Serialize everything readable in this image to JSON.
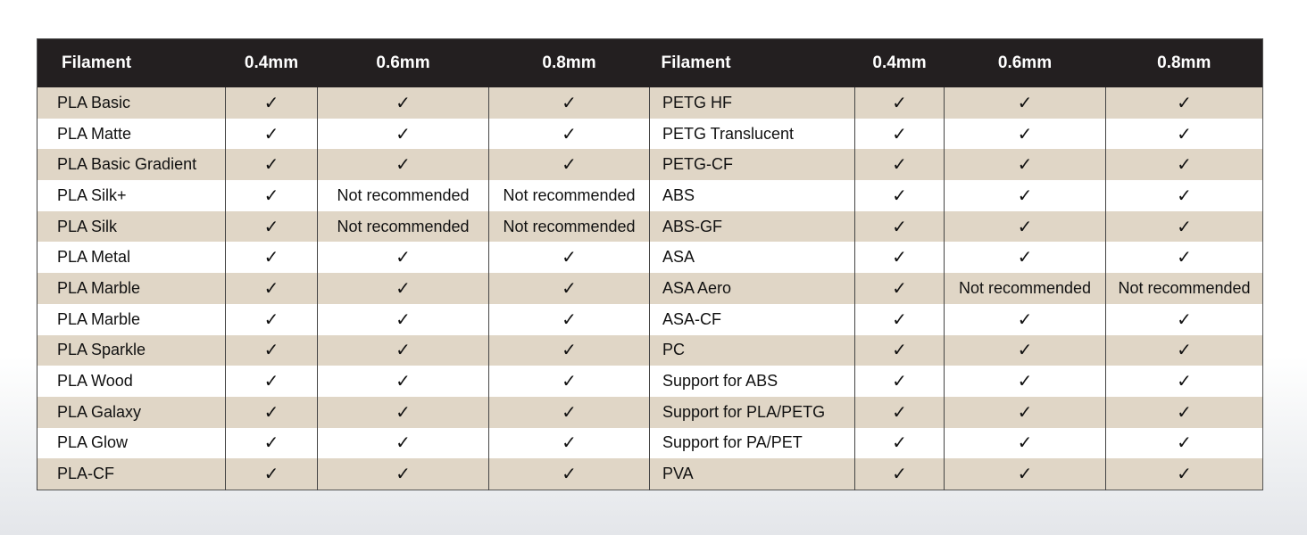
{
  "table": {
    "header": [
      "Filament",
      "0.4mm",
      "0.6mm",
      "0.8mm",
      "Filament",
      "0.4mm",
      "0.6mm",
      "0.8mm"
    ],
    "rows": [
      [
        "PLA Basic",
        "✓",
        "✓",
        "✓",
        "PETG HF",
        "✓",
        "✓",
        "✓"
      ],
      [
        "PLA Matte",
        "✓",
        "✓",
        "✓",
        "PETG Translucent",
        "✓",
        "✓",
        "✓"
      ],
      [
        "PLA Basic Gradient",
        "✓",
        "✓",
        "✓",
        "PETG-CF",
        "✓",
        "✓",
        "✓"
      ],
      [
        "PLA Silk+",
        "✓",
        "Not recommended",
        "Not recommended",
        "ABS",
        "✓",
        "✓",
        "✓"
      ],
      [
        "PLA Silk",
        "✓",
        "Not recommended",
        "Not recommended",
        "ABS-GF",
        "✓",
        "✓",
        "✓"
      ],
      [
        "PLA Metal",
        "✓",
        "✓",
        "✓",
        "ASA",
        "✓",
        "✓",
        "✓"
      ],
      [
        "PLA Marble",
        "✓",
        "✓",
        "✓",
        "ASA Aero",
        "✓",
        "Not recommended",
        "Not recommended"
      ],
      [
        "PLA Marble",
        "✓",
        "✓",
        "✓",
        "ASA-CF",
        "✓",
        "✓",
        "✓"
      ],
      [
        "PLA Sparkle",
        "✓",
        "✓",
        "✓",
        "PC",
        "✓",
        "✓",
        "✓"
      ],
      [
        "PLA Wood",
        "✓",
        "✓",
        "✓",
        "Support for ABS",
        "✓",
        "✓",
        "✓"
      ],
      [
        "PLA Galaxy",
        "✓",
        "✓",
        "✓",
        "Support for PLA/PETG",
        "✓",
        "✓",
        "✓"
      ],
      [
        "PLA Glow",
        "✓",
        "✓",
        "✓",
        "Support for PA/PET",
        "✓",
        "✓",
        "✓"
      ],
      [
        "PLA-CF",
        "✓",
        "✓",
        "✓",
        "PVA",
        "✓",
        "✓",
        "✓"
      ]
    ]
  }
}
